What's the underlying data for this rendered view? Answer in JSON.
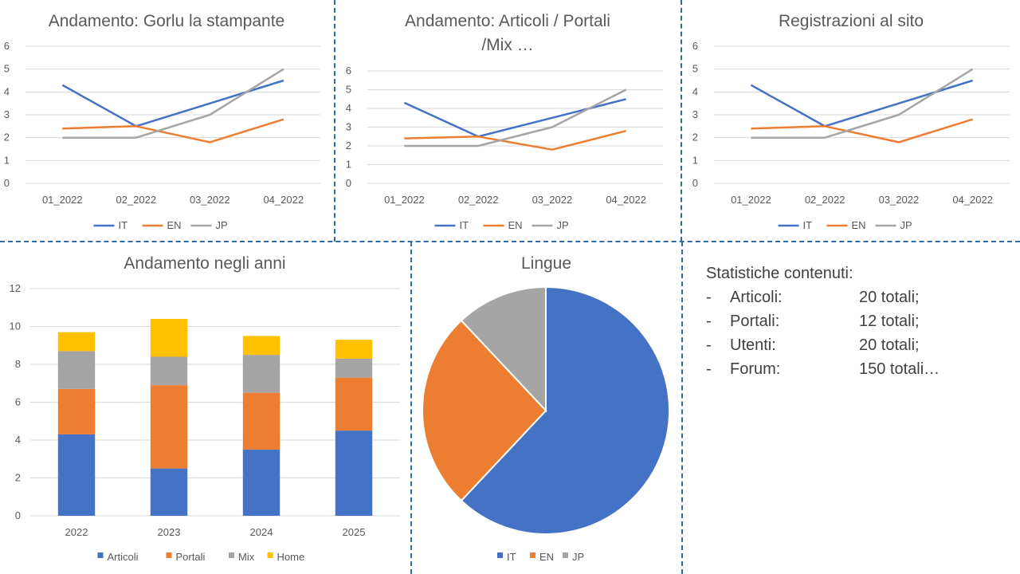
{
  "chart_data": [
    {
      "type": "line",
      "title": [
        "Andamento: Gorlu la stampante"
      ],
      "categories": [
        "01_2022",
        "02_2022",
        "03_2022",
        "04_2022"
      ],
      "ylim": [
        0,
        6
      ],
      "yticks": [
        0,
        1,
        2,
        3,
        4,
        5,
        6
      ],
      "grid": true,
      "legend_position": "bottom",
      "series": [
        {
          "name": "IT",
          "color": "#4472c4",
          "values": [
            4.3,
            2.5,
            3.5,
            4.5
          ]
        },
        {
          "name": "EN",
          "color": "#ed7d31",
          "values": [
            2.4,
            2.5,
            1.8,
            2.8
          ]
        },
        {
          "name": "JP",
          "color": "#a5a5a5",
          "values": [
            2,
            2,
            3,
            5
          ]
        }
      ]
    },
    {
      "type": "line",
      "title": [
        "Andamento: Articoli / Portali",
        "/Mix …"
      ],
      "categories": [
        "01_2022",
        "02_2022",
        "03_2022",
        "04_2022"
      ],
      "ylim": [
        0,
        6
      ],
      "yticks": [
        0,
        1,
        2,
        3,
        4,
        5,
        6
      ],
      "grid": true,
      "legend_position": "bottom",
      "series": [
        {
          "name": "IT",
          "color": "#4472c4",
          "values": [
            4.3,
            2.5,
            3.5,
            4.5
          ]
        },
        {
          "name": "EN",
          "color": "#ed7d31",
          "values": [
            2.4,
            2.5,
            1.8,
            2.8
          ]
        },
        {
          "name": "JP",
          "color": "#a5a5a5",
          "values": [
            2,
            2,
            3,
            5
          ]
        }
      ]
    },
    {
      "type": "line",
      "title": [
        "Registrazioni al sito"
      ],
      "categories": [
        "01_2022",
        "02_2022",
        "03_2022",
        "04_2022"
      ],
      "ylim": [
        0,
        6
      ],
      "yticks": [
        0,
        1,
        2,
        3,
        4,
        5,
        6
      ],
      "grid": true,
      "legend_position": "bottom",
      "series": [
        {
          "name": "IT",
          "color": "#4472c4",
          "values": [
            4.3,
            2.5,
            3.5,
            4.5
          ]
        },
        {
          "name": "EN",
          "color": "#ed7d31",
          "values": [
            2.4,
            2.5,
            1.8,
            2.8
          ]
        },
        {
          "name": "JP",
          "color": "#a5a5a5",
          "values": [
            2,
            2,
            3,
            5
          ]
        }
      ]
    },
    {
      "type": "bar",
      "stacked": true,
      "title": [
        "Andamento negli anni"
      ],
      "categories": [
        "2022",
        "2023",
        "2024",
        "2025"
      ],
      "ylim": [
        0,
        12
      ],
      "yticks": [
        0,
        2,
        4,
        6,
        8,
        10,
        12
      ],
      "grid": true,
      "legend_position": "bottom",
      "series": [
        {
          "name": "Articoli",
          "color": "#4472c4",
          "values": [
            4.3,
            2.5,
            3.5,
            4.5
          ]
        },
        {
          "name": "Portali",
          "color": "#ed7d31",
          "values": [
            2.4,
            4.4,
            3.0,
            2.8
          ]
        },
        {
          "name": "Mix",
          "color": "#a5a5a5",
          "values": [
            2.0,
            1.5,
            2.0,
            1.0
          ]
        },
        {
          "name": "Home",
          "color": "#ffc000",
          "values": [
            1.0,
            2.0,
            1.0,
            1.0
          ]
        }
      ]
    },
    {
      "type": "pie",
      "title": [
        "Lingue"
      ],
      "legend_position": "bottom",
      "slices": [
        {
          "name": "IT",
          "color": "#4472c4",
          "value": 62
        },
        {
          "name": "EN",
          "color": "#ed7d31",
          "value": 26
        },
        {
          "name": "JP",
          "color": "#a5a5a5",
          "value": 12
        }
      ]
    }
  ],
  "stats": {
    "title": "Statistiche contenuti:",
    "items": [
      {
        "dash": "-",
        "label": "Articoli:",
        "value": "20 totali;"
      },
      {
        "dash": "-",
        "label": "Portali:",
        "value": "12 totali;"
      },
      {
        "dash": "-",
        "label": "Utenti:",
        "value": "20 totali;"
      },
      {
        "dash": "-",
        "label": "Forum:",
        "value": "150 totali…"
      }
    ]
  },
  "colors": {
    "divider": "#2e6aa5",
    "grid": "#d9d9d9",
    "text": "#595959"
  }
}
